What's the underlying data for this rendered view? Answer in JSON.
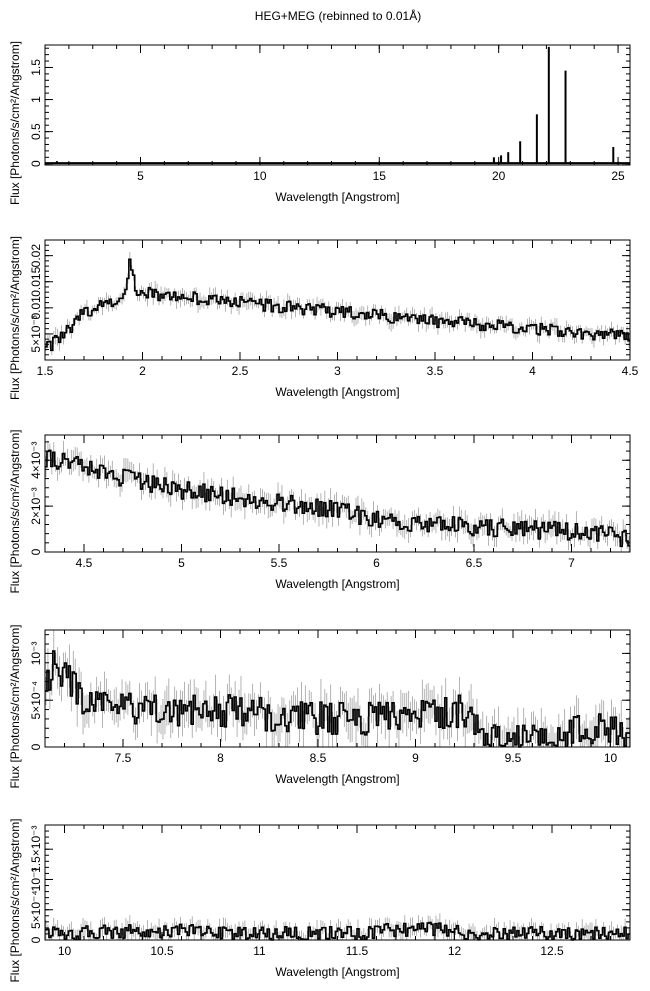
{
  "figure": {
    "title": "HEG+MEG (rebinned to 0.01Å)"
  },
  "chart_data": [
    {
      "type": "line",
      "xlabel": "Wavelength [Angstrom]",
      "ylabel": "Flux [Photons/s/cm²/Angstrom]",
      "xlim": [
        1.0,
        25.5
      ],
      "ylim": [
        -0.02,
        1.85
      ],
      "xticks": [
        5,
        10,
        15,
        20,
        25
      ],
      "xtick_labels": [
        "5",
        "10",
        "15",
        "20",
        "25"
      ],
      "yticks": [
        0,
        0.5,
        1.0,
        1.5
      ],
      "ytick_labels": [
        "0",
        "0.5",
        "1",
        "1.5"
      ],
      "baseline": 0.01,
      "lines": [
        {
          "x": 1.5,
          "y": 0.04
        },
        {
          "x": 19.8,
          "y": 0.1
        },
        {
          "x": 20.1,
          "y": 0.13
        },
        {
          "x": 20.4,
          "y": 0.18
        },
        {
          "x": 20.9,
          "y": 0.35
        },
        {
          "x": 21.6,
          "y": 0.77
        },
        {
          "x": 22.1,
          "y": 1.82
        },
        {
          "x": 22.8,
          "y": 1.45
        },
        {
          "x": 24.8,
          "y": 0.26
        }
      ]
    },
    {
      "type": "line",
      "xlabel": "Wavelength [Angstrom]",
      "ylabel": "Flux [Photons/s/cm²/Angstrom]",
      "xlim": [
        1.5,
        4.5
      ],
      "ylim": [
        0.0,
        0.023
      ],
      "xticks": [
        1.5,
        2,
        2.5,
        3,
        3.5,
        4,
        4.5
      ],
      "xtick_labels": [
        "1.5",
        "2",
        "2.5",
        "3",
        "3.5",
        "4",
        "4.5"
      ],
      "yticks": [
        0.005,
        0.01,
        0.015,
        0.02
      ],
      "ytick_labels": [
        "5×10⁻³",
        "0.01",
        "0.015",
        "0.02"
      ],
      "anchors": [
        [
          1.5,
          0.002
        ],
        [
          1.6,
          0.005
        ],
        [
          1.7,
          0.009
        ],
        [
          1.85,
          0.0115
        ],
        [
          1.9,
          0.012
        ],
        [
          1.94,
          0.019
        ],
        [
          1.97,
          0.013
        ],
        [
          2.1,
          0.0125
        ],
        [
          2.5,
          0.011
        ],
        [
          3.0,
          0.0093
        ],
        [
          3.5,
          0.0075
        ],
        [
          4.0,
          0.006
        ],
        [
          4.5,
          0.0045
        ]
      ],
      "noise": 0.0012
    },
    {
      "type": "line",
      "xlabel": "Wavelength [Angstrom]",
      "ylabel": "Flux [Photons/s/cm²/Angstrom]",
      "xlim": [
        4.3,
        7.3
      ],
      "ylim": [
        0.0,
        0.0051
      ],
      "xticks": [
        4.5,
        5,
        5.5,
        6,
        6.5,
        7
      ],
      "xtick_labels": [
        "4.5",
        "5",
        "5.5",
        "6",
        "6.5",
        "7"
      ],
      "yticks": [
        0,
        0.002,
        0.004
      ],
      "ytick_labels": [
        "0",
        "2×10⁻³",
        "4×10⁻³"
      ],
      "anchors": [
        [
          4.3,
          0.0041
        ],
        [
          4.5,
          0.0037
        ],
        [
          4.8,
          0.003
        ],
        [
          5.0,
          0.0027
        ],
        [
          5.4,
          0.0023
        ],
        [
          5.8,
          0.0018
        ],
        [
          6.0,
          0.0014
        ],
        [
          6.5,
          0.0011
        ],
        [
          7.0,
          0.0009
        ],
        [
          7.3,
          0.0006
        ]
      ],
      "noise": 0.0004
    },
    {
      "type": "line",
      "xlabel": "Wavelength [Angstrom]",
      "ylabel": "Flux [Photons/s/cm²/Angstrom]",
      "xlim": [
        7.1,
        10.1
      ],
      "ylim": [
        0.0,
        0.00125
      ],
      "xticks": [
        7.5,
        8,
        8.5,
        9,
        9.5,
        10
      ],
      "xtick_labels": [
        "7.5",
        "8",
        "8.5",
        "9",
        "9.5",
        "10"
      ],
      "yticks": [
        0,
        0.0005,
        0.001
      ],
      "ytick_labels": [
        "0",
        "5×10⁻⁴",
        "10⁻³"
      ],
      "anchors": [
        [
          7.1,
          0.0006
        ],
        [
          7.15,
          0.0009
        ],
        [
          7.3,
          0.0005
        ],
        [
          7.5,
          0.0004
        ],
        [
          8.0,
          0.0004
        ],
        [
          8.5,
          0.0003
        ],
        [
          9.0,
          0.0003
        ],
        [
          9.25,
          0.0004
        ],
        [
          9.35,
          0.0001
        ],
        [
          9.6,
          0.0001
        ],
        [
          10.0,
          0.0002
        ],
        [
          10.1,
          0.0001
        ]
      ],
      "noise": 0.00018
    },
    {
      "type": "line",
      "xlabel": "Wavelength [Angstrom]",
      "ylabel": "Flux [Photons/s/cm²/Angstrom]",
      "xlim": [
        9.9,
        12.9
      ],
      "ylim": [
        0.0,
        0.0019
      ],
      "xticks": [
        10,
        10.5,
        11,
        11.5,
        12,
        12.5
      ],
      "xtick_labels": [
        "10",
        "10.5",
        "11",
        "11.5",
        "12",
        "12.5"
      ],
      "yticks": [
        0,
        0.0005,
        0.001,
        0.0015
      ],
      "ytick_labels": [
        "0",
        "5×10⁻⁴",
        "10⁻³",
        "1.5×10⁻³"
      ],
      "anchors": [
        [
          9.9,
          0.0001
        ],
        [
          10.5,
          0.00015
        ],
        [
          11.0,
          0.0001
        ],
        [
          11.5,
          0.0001
        ],
        [
          11.8,
          0.0002
        ],
        [
          12.1,
          0.0001
        ],
        [
          12.9,
          0.0001
        ]
      ],
      "noise": 0.00012
    }
  ]
}
